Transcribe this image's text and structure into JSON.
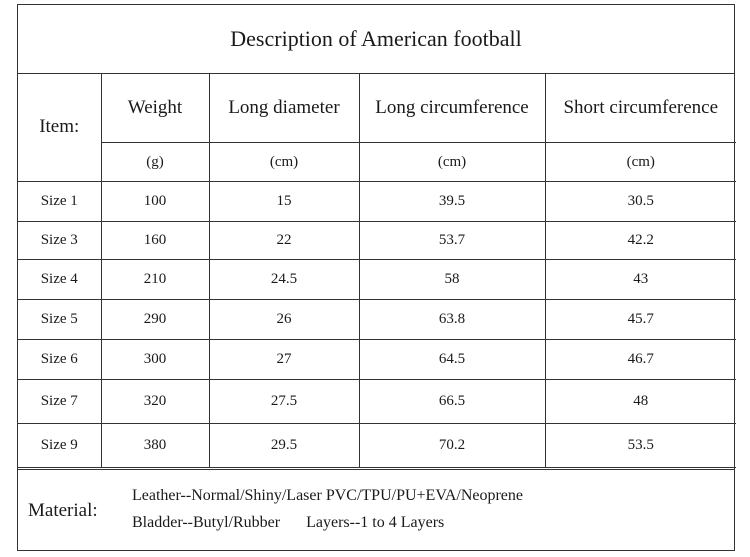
{
  "title": "Description of American football",
  "table": {
    "item_label": "Item:",
    "headers": [
      "Weight",
      "Long diameter",
      "Long circumference",
      "Short circumference"
    ],
    "units": [
      "(g)",
      "(cm)",
      "(cm)",
      "(cm)"
    ],
    "rows": [
      {
        "size": "Size 1",
        "values": [
          "100",
          "15",
          "39.5",
          "30.5"
        ]
      },
      {
        "size": "Size 3",
        "values": [
          "160",
          "22",
          "53.7",
          "42.2"
        ]
      },
      {
        "size": "Size 4",
        "values": [
          "210",
          "24.5",
          "58",
          "43"
        ]
      },
      {
        "size": "Size 5",
        "values": [
          "290",
          "26",
          "63.8",
          "45.7"
        ]
      },
      {
        "size": "Size 6",
        "values": [
          "300",
          "27",
          "64.5",
          "46.7"
        ]
      },
      {
        "size": "Size 7",
        "values": [
          "320",
          "27.5",
          "66.5",
          "48"
        ]
      },
      {
        "size": "Size 9",
        "values": [
          "380",
          "29.5",
          "70.2",
          "53.5"
        ]
      }
    ]
  },
  "material": {
    "label": "Material:",
    "line1": "Leather--Normal/Shiny/Laser PVC/TPU/PU+EVA/Neoprene",
    "bladder": "Bladder--Butyl/Rubber",
    "layers": "Layers--1 to 4 Layers"
  }
}
